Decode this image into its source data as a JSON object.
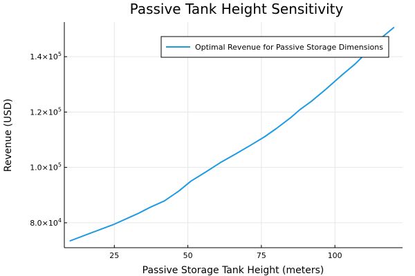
{
  "chart_data": {
    "type": "line",
    "title": "Passive Tank Height Sensitivity",
    "xlabel": "Passive Storage Tank Height (meters)",
    "ylabel": "Revenue (USD)",
    "xlim": [
      8,
      123
    ],
    "ylim": [
      71000,
      152500
    ],
    "xticks": [
      25,
      50,
      75,
      100
    ],
    "yticks": [
      80000,
      100000,
      120000,
      140000
    ],
    "ytick_labels": [
      {
        "mantissa": "8.0×10",
        "exp": "4"
      },
      {
        "mantissa": "1.0×10",
        "exp": "5"
      },
      {
        "mantissa": "1.2×10",
        "exp": "5"
      },
      {
        "mantissa": "1.4×10",
        "exp": "5"
      }
    ],
    "grid": true,
    "legend_position": "top-right",
    "series": [
      {
        "name": "Optimal Revenue for Passive Storage Dimensions",
        "color": "#1e9ae2",
        "x": [
          10,
          15,
          20,
          25,
          30,
          33,
          37,
          42,
          47,
          51,
          56,
          61,
          66,
          71,
          76,
          80,
          85,
          88,
          92,
          97,
          102,
          107,
          112,
          116,
          120
        ],
        "y": [
          73500,
          75500,
          77500,
          79500,
          81900,
          83300,
          85500,
          87900,
          91500,
          95000,
          98300,
          101700,
          104700,
          107800,
          111000,
          114000,
          118000,
          120800,
          123900,
          128300,
          133000,
          137500,
          142800,
          147000,
          150500
        ]
      }
    ]
  }
}
